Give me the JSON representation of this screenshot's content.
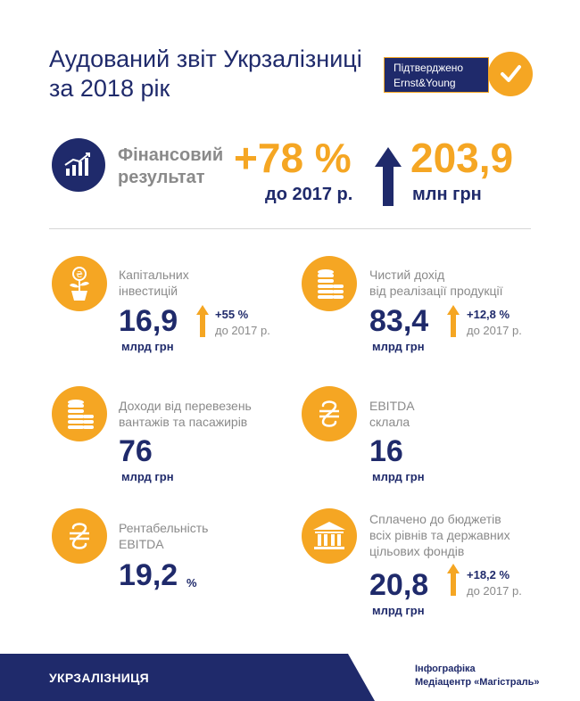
{
  "header": {
    "title_line1": "Аудований звіт Укрзалізниці",
    "title_line2": "за 2018 рік",
    "badge_line1": "Підтверджено",
    "badge_line2": "Ernst&Young"
  },
  "financial": {
    "label_line1": "Фінансовий",
    "label_line2": "результат",
    "change": "+78 %",
    "change_sub": "до 2017 р.",
    "value": "203,9",
    "value_unit": "млн грн"
  },
  "metrics": {
    "capex": {
      "label_line1": "Капітальних",
      "label_line2": "інвестицій",
      "value": "16,9",
      "unit": "млрд грн",
      "change": "+55 %",
      "change_sub": "до 2017 р."
    },
    "net_income": {
      "label_line1": "Чистий дохід",
      "label_line2": "від реалізації продукції",
      "value": "83,4",
      "unit": "млрд грн",
      "change": "+12,8 %",
      "change_sub": "до 2017 р."
    },
    "transport": {
      "label_line1": "Доходи від перевезень",
      "label_line2": "вантажів та пасажирів",
      "value": "76",
      "unit": "млрд грн"
    },
    "ebitda": {
      "label_line1": "EBITDA",
      "label_line2": "склала",
      "value": "16",
      "unit": "млрд грн"
    },
    "ebitda_margin": {
      "label_line1": "Рентабельність",
      "label_line2": "EBITDA",
      "value": "19,2",
      "unit": "%"
    },
    "budget": {
      "label_line1": "Сплачено до бюджетів",
      "label_line2": "всіх рівнів та державних",
      "label_line3": "цільових фондів",
      "value": "20,8",
      "unit": "млрд грн",
      "change": "+18,2 %",
      "change_sub": "до 2017 р."
    }
  },
  "footer": {
    "logo": "УКРЗАЛІЗНИЦЯ",
    "credit_line1": "Інфографіка",
    "credit_line2": "Медіацентр «Магістраль»"
  },
  "colors": {
    "navy": "#1f2a6b",
    "orange": "#f5a623",
    "gray": "#8a8a8a"
  }
}
